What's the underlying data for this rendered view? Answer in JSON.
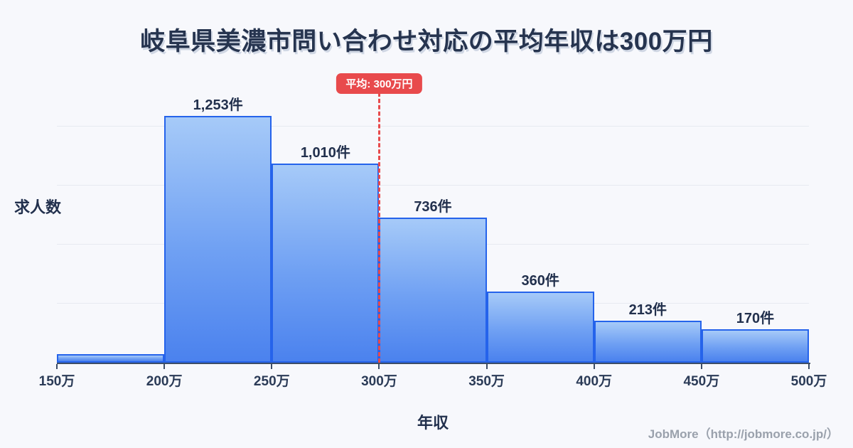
{
  "page": {
    "background": "#f7f8fc"
  },
  "title": {
    "text": "岐阜県美濃市問い合わせ対応の平均年収は300万円"
  },
  "footer": {
    "credit": "JobMore（http://jobmore.co.jp/）"
  },
  "chart_data": {
    "type": "bar",
    "title": "岐阜県美濃市問い合わせ対応の平均年収は300万円",
    "xlabel": "年収",
    "ylabel": "求人数",
    "bin_edges": [
      "150万",
      "200万",
      "250万",
      "300万",
      "350万",
      "400万",
      "450万",
      "500万"
    ],
    "values": [
      43,
      1253,
      1010,
      736,
      360,
      213,
      170
    ],
    "bar_labels": [
      "",
      "1,253件",
      "1,010件",
      "736件",
      "360件",
      "213件",
      "170件"
    ],
    "ylim": [
      0,
      1480
    ],
    "gridline_values": [
      300,
      600,
      900,
      1200
    ],
    "grid": "horizontal-only",
    "legend": "none",
    "average_line": {
      "x": "300万",
      "label": "平均: 300万円"
    },
    "colors": {
      "bar_fill_top": "#a6caf8",
      "bar_fill_bottom": "#4b82ee",
      "bar_border": "#2563eb",
      "average_red": "#e84a4c",
      "gridline": "#e7eaf1",
      "axis": "#3d4d66",
      "text": "#22304d",
      "footer_text": "#9aa1ac",
      "background": "#f7f8fc"
    }
  }
}
